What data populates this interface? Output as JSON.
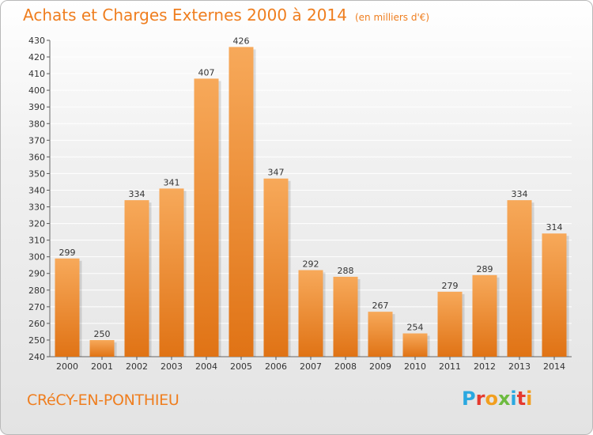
{
  "header": {
    "title": "Achats et Charges Externes 2000 à 2014",
    "unit": "(en milliers d'€)"
  },
  "footer": {
    "commune": "CRéCY-EN-PONTHIEU",
    "logo": "Proxiti",
    "logo_colors": [
      "#2aa8e0",
      "#e53a2f",
      "#f29f1f",
      "#6dbb3f",
      "#2aa8e0",
      "#e53a2f",
      "#f29f1f"
    ]
  },
  "colors": {
    "bar_light": "#f7a95a",
    "bar_dark": "#e07315",
    "accent": "#ef7e1f",
    "grid": "#ffffff",
    "axis_text": "#333333"
  },
  "chart_data": {
    "type": "bar",
    "title": "Achats et Charges Externes 2000 à 2014",
    "subtitle": "(en milliers d'€)",
    "categories": [
      "2000",
      "2001",
      "2002",
      "2003",
      "2004",
      "2005",
      "2006",
      "2007",
      "2008",
      "2009",
      "2010",
      "2011",
      "2012",
      "2013",
      "2014"
    ],
    "values": [
      299,
      250,
      334,
      341,
      407,
      426,
      347,
      292,
      288,
      267,
      254,
      279,
      289,
      334,
      314
    ],
    "yticks": [
      240,
      250,
      260,
      270,
      280,
      290,
      300,
      310,
      320,
      330,
      340,
      350,
      360,
      370,
      380,
      390,
      400,
      410,
      420,
      430
    ],
    "ylim": [
      240,
      430
    ],
    "grid": true,
    "legend": "none"
  }
}
